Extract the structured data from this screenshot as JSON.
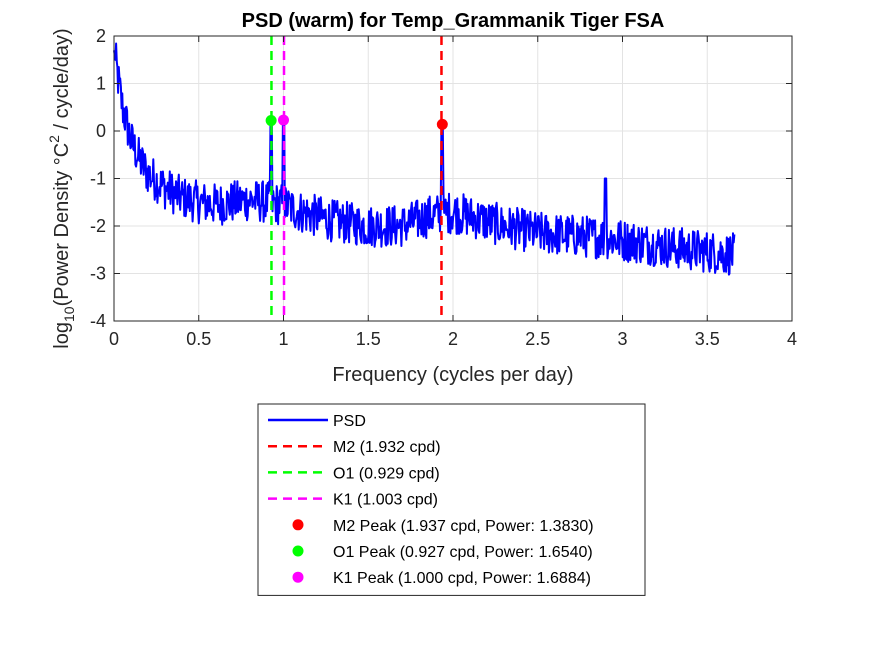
{
  "chart_data": {
    "type": "line",
    "title": "PSD (warm) for Temp_Grammanik Tiger FSA",
    "xlabel": "Frequency (cycles per day)",
    "ylabel": {
      "prefix": "log",
      "sub": "10",
      "mid": "(Power Density °C",
      "sup": "2",
      "suffix": " / cycle/day)"
    },
    "xlim": [
      0,
      4
    ],
    "ylim": [
      -4,
      2
    ],
    "x_ticks": [
      0,
      0.5,
      1,
      1.5,
      2,
      2.5,
      3,
      3.5,
      4
    ],
    "x_tick_labels": [
      "0",
      "0.5",
      "1",
      "1.5",
      "2",
      "2.5",
      "3",
      "3.5",
      "4"
    ],
    "y_ticks": [
      -4,
      -3,
      -2,
      -1,
      0,
      1,
      2
    ],
    "y_tick_labels": [
      "-4",
      "-3",
      "-2",
      "-1",
      "0",
      "1",
      "2"
    ],
    "grid": true,
    "psd_series": {
      "name": "PSD",
      "color": "#0000ff",
      "x_max": 3.66,
      "trend_points": [
        [
          0.0,
          1.7
        ],
        [
          0.02,
          1.2
        ],
        [
          0.05,
          0.5
        ],
        [
          0.1,
          -0.2
        ],
        [
          0.15,
          -0.6
        ],
        [
          0.2,
          -0.9
        ],
        [
          0.3,
          -1.2
        ],
        [
          0.4,
          -1.4
        ],
        [
          0.5,
          -1.5
        ],
        [
          0.6,
          -1.55
        ],
        [
          0.7,
          -1.5
        ],
        [
          0.8,
          -1.45
        ],
        [
          0.9,
          -1.5
        ],
        [
          1.0,
          -1.55
        ],
        [
          1.1,
          -1.7
        ],
        [
          1.3,
          -1.9
        ],
        [
          1.5,
          -2.0
        ],
        [
          1.7,
          -2.0
        ],
        [
          1.85,
          -1.8
        ],
        [
          2.0,
          -1.7
        ],
        [
          2.1,
          -1.8
        ],
        [
          2.3,
          -2.0
        ],
        [
          2.5,
          -2.15
        ],
        [
          2.7,
          -2.2
        ],
        [
          2.9,
          -2.25
        ],
        [
          3.0,
          -2.3
        ],
        [
          3.2,
          -2.4
        ],
        [
          3.4,
          -2.5
        ],
        [
          3.66,
          -2.6
        ]
      ],
      "peaks": [
        {
          "x": 0.927,
          "y": 0.2
        },
        {
          "x": 1.0,
          "y": 0.2
        },
        {
          "x": 1.937,
          "y": 0.1
        },
        {
          "x": 2.9,
          "y": -1.0
        }
      ]
    },
    "vertical_lines": [
      {
        "name": "M2 (1.932 cpd)",
        "x": 1.932,
        "color": "#ff0000"
      },
      {
        "name": "O1 (0.929 cpd)",
        "x": 0.929,
        "color": "#00ff00"
      },
      {
        "name": "K1 (1.003 cpd)",
        "x": 1.003,
        "color": "#ff00ff"
      }
    ],
    "peak_markers": [
      {
        "name": "M2 Peak (1.937 cpd, Power: 1.3830)",
        "x": 1.937,
        "y": 0.14,
        "color": "#ff0000"
      },
      {
        "name": "O1 Peak (0.927 cpd, Power: 1.6540)",
        "x": 0.927,
        "y": 0.22,
        "color": "#00ff00"
      },
      {
        "name": "K1 Peak (1.000 cpd, Power: 1.6884)",
        "x": 1.0,
        "y": 0.23,
        "color": "#ff00ff"
      }
    ],
    "legend": {
      "placement": "below-axes",
      "entries": [
        {
          "label": "PSD",
          "kind": "line",
          "color": "#0000ff"
        },
        {
          "label": "M2 (1.932 cpd)",
          "kind": "dash",
          "color": "#ff0000"
        },
        {
          "label": "O1 (0.929 cpd)",
          "kind": "dash",
          "color": "#00ff00"
        },
        {
          "label": "K1 (1.003 cpd)",
          "kind": "dash",
          "color": "#ff00ff"
        },
        {
          "label": "M2 Peak (1.937 cpd, Power: 1.3830)",
          "kind": "dot",
          "color": "#ff0000"
        },
        {
          "label": "O1 Peak (0.927 cpd, Power: 1.6540)",
          "kind": "dot",
          "color": "#00ff00"
        },
        {
          "label": "K1 Peak (1.000 cpd, Power: 1.6884)",
          "kind": "dot",
          "color": "#ff00ff"
        }
      ]
    }
  }
}
